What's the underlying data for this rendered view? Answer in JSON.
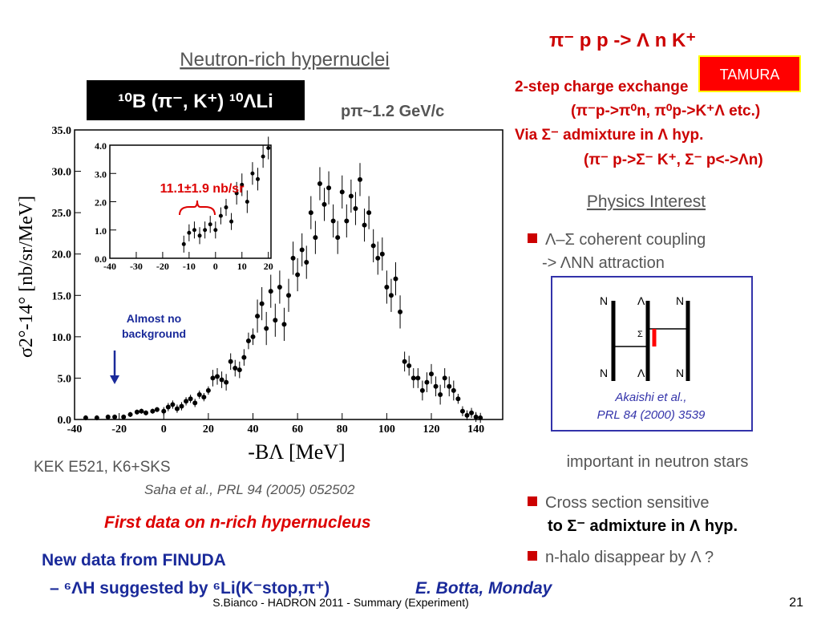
{
  "chart_data": [
    {
      "type": "scatter",
      "xlabel": "-BΛ [MeV]",
      "ylabel": "σ2°-14° [nb/sr/MeV]",
      "annotation": [
        "Almost no",
        "background"
      ],
      "x": [
        -35,
        -30,
        -25,
        -22,
        -18,
        -15,
        -12,
        -10,
        -8,
        -5,
        -3,
        0,
        2,
        4,
        6,
        8,
        10,
        12,
        14,
        16,
        18,
        20,
        22,
        24,
        26,
        28,
        30,
        32,
        34,
        36,
        38,
        40,
        42,
        44,
        46,
        48,
        50,
        52,
        54,
        56,
        58,
        60,
        62,
        64,
        66,
        68,
        70,
        72,
        74,
        76,
        78,
        80,
        82,
        84,
        86,
        88,
        90,
        92,
        94,
        96,
        98,
        100,
        102,
        104,
        106,
        108,
        110,
        112,
        114,
        116,
        118,
        120,
        122,
        124,
        126,
        128,
        130,
        132,
        134,
        136,
        138,
        140,
        142
      ],
      "values": [
        0.2,
        0.2,
        0.3,
        0.3,
        0.3,
        0.6,
        0.9,
        1.0,
        0.8,
        1.0,
        1.2,
        1.0,
        1.5,
        1.8,
        1.3,
        1.6,
        2.2,
        2.5,
        2.0,
        3.0,
        2.7,
        3.5,
        5.0,
        5.2,
        4.8,
        4.5,
        7.0,
        6.2,
        6.0,
        7.5,
        9.5,
        10.0,
        12.5,
        14.0,
        11.0,
        15.5,
        12.0,
        16.0,
        11.5,
        15.0,
        19.5,
        17.5,
        20.5,
        19.0,
        25.0,
        22.0,
        28.5,
        26.0,
        28.0,
        24.0,
        22.0,
        27.5,
        24.0,
        27.0,
        25.5,
        29.0,
        23.5,
        25.0,
        21.0,
        19.5,
        20.0,
        16.0,
        15.0,
        17.0,
        13.0,
        7.0,
        6.5,
        5.0,
        5.0,
        3.5,
        4.5,
        5.5,
        4.0,
        3.0,
        5.0,
        4.0,
        3.5,
        2.5,
        1.0,
        0.5,
        0.8,
        0.3,
        0.2
      ],
      "errors": [
        0.3,
        0.3,
        0.3,
        0.3,
        0.3,
        0.3,
        0.3,
        0.3,
        0.3,
        0.3,
        0.3,
        0.5,
        0.5,
        0.5,
        0.5,
        0.5,
        0.5,
        0.5,
        0.5,
        0.5,
        0.5,
        0.5,
        1.0,
        1.0,
        1.0,
        1.0,
        1.0,
        1.0,
        1.0,
        1.0,
        1.0,
        1.0,
        2.0,
        2.0,
        2.0,
        2.0,
        2.0,
        2.0,
        2.0,
        2.0,
        2.0,
        2.0,
        2.0,
        2.0,
        2.0,
        2.0,
        2.0,
        2.0,
        2.0,
        2.0,
        2.0,
        2.0,
        2.0,
        2.0,
        2.0,
        2.0,
        2.0,
        2.0,
        2.0,
        2.0,
        2.0,
        2.0,
        2.0,
        2.0,
        2.0,
        1.2,
        1.2,
        1.2,
        1.2,
        1.2,
        1.2,
        1.2,
        1.2,
        1.2,
        1.2,
        1.2,
        1.2,
        0.6,
        0.6,
        0.6,
        0.6,
        0.6,
        0.6
      ],
      "color": "#000000",
      "xlim": [
        -40,
        152
      ],
      "ylim": [
        0,
        35
      ],
      "xticks": [
        -40,
        -20,
        0,
        20,
        40,
        60,
        80,
        100,
        120,
        140
      ],
      "yticks": [
        {
          "value": 0,
          "label": "0.0"
        },
        {
          "value": 5,
          "label": "5.0"
        },
        {
          "value": 10,
          "label": "10.0"
        },
        {
          "value": 15,
          "label": "15.0"
        },
        {
          "value": 20,
          "label": "20.0"
        },
        {
          "value": 25,
          "label": "25.0"
        },
        {
          "value": 30,
          "label": "30.0"
        },
        {
          "value": 35,
          "label": "35.0"
        }
      ]
    },
    {
      "type": "scatter",
      "annotation": "11.1±1.9 nb/sr",
      "x": [
        -12,
        -10,
        -8,
        -6,
        -4,
        -2,
        0,
        2,
        4,
        6,
        8,
        10,
        12,
        14,
        16,
        18,
        20
      ],
      "values": [
        0.5,
        0.9,
        1.0,
        0.8,
        1.0,
        1.2,
        1.0,
        1.5,
        1.8,
        1.3,
        2.3,
        2.6,
        2.0,
        3.0,
        2.8,
        3.6,
        3.9
      ],
      "errors": [
        0.3,
        0.3,
        0.3,
        0.3,
        0.3,
        0.3,
        0.3,
        0.3,
        0.3,
        0.3,
        0.4,
        0.4,
        0.4,
        0.4,
        0.4,
        0.4,
        0.4
      ],
      "color": "#000000",
      "xlim": [
        -40,
        21
      ],
      "ylim": [
        0,
        4
      ],
      "xticks": [
        -40,
        -30,
        -20,
        -10,
        0,
        10,
        20
      ],
      "yticks": [
        {
          "value": 0,
          "label": "0.0"
        },
        {
          "value": 1,
          "label": "1.0"
        },
        {
          "value": 2,
          "label": "2.0"
        },
        {
          "value": 3,
          "label": "3.0"
        },
        {
          "value": 4,
          "label": "4.0"
        }
      ]
    }
  ],
  "slide": {
    "title": "Neutron-rich hypernuclei",
    "reaction": "¹⁰B (π⁻, K⁺) ¹⁰ΛLi",
    "momentum": "pπ~1.2 GeV/c",
    "top_reaction": "π⁻ p p -> Λ n K⁺",
    "tamura": "TAMURA",
    "mechanism": [
      "2-step charge exchange",
      "(π⁻p->π⁰n, π⁰p->K⁺Λ etc.)",
      "Via Σ⁻ admixture in Λ hyp.",
      "(π⁻ p->Σ⁻ K⁺, Σ⁻ p<->Λn)"
    ],
    "physics": "Physics Interest",
    "bullet1": [
      "Λ–Σ coherent coupling",
      "->  ΛNN attraction"
    ],
    "diagram": [
      "N",
      "Λ",
      "N",
      "Σ",
      "N",
      "Λ",
      "N"
    ],
    "ref": [
      "Akaishi et al.,",
      "PRL 84 (2000) 3539"
    ],
    "neutron_stars": "important in neutron stars",
    "bullet2": [
      "Cross section sensitive",
      "to Σ⁻ admixture in Λ hyp."
    ],
    "bullet3": "n-halo disappear by Λ ?",
    "kek": "KEK E521, K6+SKS",
    "saha": "Saha et al., PRL 94 (2005) 052502",
    "first": "First data on n-rich hypernucleus",
    "finuda": [
      "New data from FINUDA",
      "– ⁶ΛH suggested by ⁶Li(K⁻stop,π⁺)"
    ],
    "botta": "E. Botta, Monday",
    "footer": "S.Bianco - HADRON 2011 - Summary (Experiment)",
    "page": "21"
  }
}
